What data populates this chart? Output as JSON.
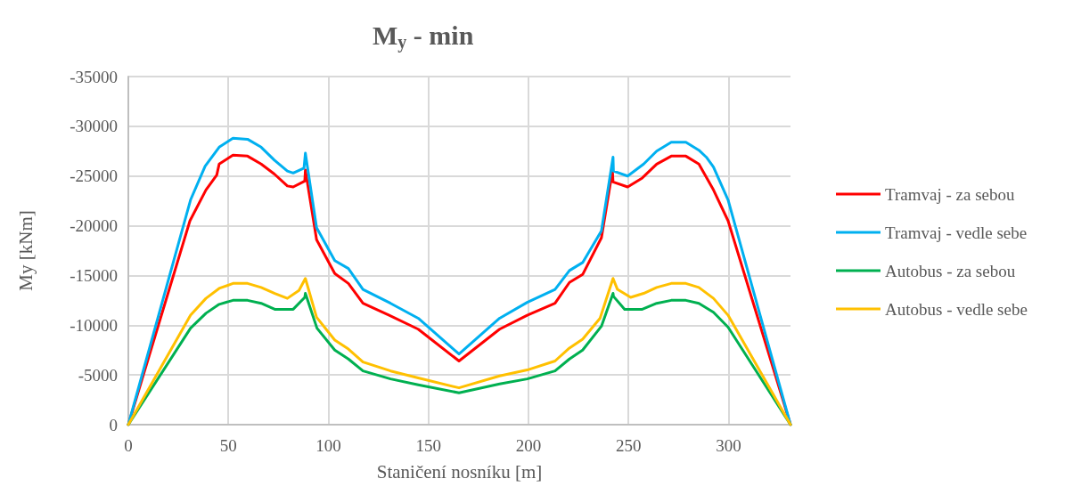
{
  "chart_data": {
    "type": "line",
    "title": "M$_{y}$ - min",
    "xlabel": "Staničení nosníku [m]",
    "ylabel": "My [kNm]",
    "xlim": [
      0,
      331
    ],
    "xticks": [
      0,
      50,
      100,
      150,
      200,
      250,
      300
    ],
    "ylim": [
      0,
      -35000
    ],
    "yticks": [
      0,
      -5000,
      -10000,
      -15000,
      -20000,
      -25000,
      -30000,
      -35000
    ],
    "grid": true,
    "legend": "right",
    "marker": "none",
    "line_style": "solid",
    "series": [
      {
        "name": "Tramvaj - za sebou",
        "color": "#ff0000",
        "x": [
          0,
          30.8,
          38.8,
          44.2,
          45.4,
          52.3,
          59.6,
          66.4,
          73,
          79.5,
          82.4,
          88.2,
          88.5,
          94.1,
          103.2,
          110,
          117.3,
          130.4,
          144.9,
          165.3,
          185.6,
          199.4,
          213.3,
          220.5,
          227.1,
          236.5,
          242,
          242.3,
          249.6,
          256.9,
          264.1,
          271.4,
          278.7,
          285.2,
          292.5,
          299.8,
          331
        ],
        "values": [
          0,
          -20500,
          -23600,
          -25100,
          -26200,
          -27100,
          -27000,
          -26200,
          -25200,
          -24000,
          -23900,
          -24500,
          -25600,
          -18600,
          -15200,
          -14200,
          -12200,
          -11000,
          -9600,
          -6400,
          -9600,
          -11000,
          -12200,
          -14300,
          -15100,
          -18800,
          -25500,
          -24400,
          -23900,
          -24800,
          -26200,
          -27000,
          -27000,
          -26200,
          -23600,
          -20500,
          0
        ]
      },
      {
        "name": "Tramvaj - vedle sebe",
        "color": "#00b0f0",
        "x": [
          0,
          31.1,
          38.4,
          45.4,
          52.3,
          59.6,
          66.4,
          73,
          79.5,
          82.4,
          87.8,
          88.5,
          94.1,
          103.2,
          110,
          117.3,
          131.1,
          144.9,
          165.3,
          185.6,
          199.4,
          213.3,
          220.5,
          227.1,
          236.5,
          242.3,
          242.5,
          249.6,
          257.6,
          264.1,
          271.4,
          278.7,
          285.2,
          288.9,
          292.5,
          299.8,
          331
        ],
        "values": [
          0,
          -22600,
          -26000,
          -27900,
          -28800,
          -28700,
          -27900,
          -26600,
          -25500,
          -25300,
          -25800,
          -27300,
          -19800,
          -16500,
          -15700,
          -13600,
          -12200,
          -10700,
          -7100,
          -10700,
          -12300,
          -13600,
          -15500,
          -16300,
          -19500,
          -26900,
          -25500,
          -25000,
          -26200,
          -27500,
          -28400,
          -28400,
          -27600,
          -26900,
          -25900,
          -22600,
          0
        ]
      },
      {
        "name": "Autobus - za sebou",
        "color": "#00b050",
        "x": [
          0,
          31.1,
          38.8,
          45.4,
          52.3,
          59.6,
          66.4,
          73.2,
          82.4,
          88.2,
          88.5,
          94.3,
          103.2,
          110,
          117.3,
          131.1,
          144.9,
          165.3,
          185.6,
          199.4,
          213.3,
          220.5,
          227.1,
          236.5,
          242.3,
          242.5,
          248.1,
          256.9,
          264.1,
          271.4,
          278.7,
          285.2,
          292.5,
          299.8,
          331
        ],
        "values": [
          0,
          -9700,
          -11200,
          -12100,
          -12500,
          -12500,
          -12200,
          -11600,
          -11600,
          -12800,
          -13200,
          -9700,
          -7500,
          -6600,
          -5400,
          -4600,
          -4000,
          -3200,
          -4100,
          -4600,
          -5400,
          -6600,
          -7500,
          -9900,
          -13200,
          -12900,
          -11600,
          -11600,
          -12200,
          -12500,
          -12500,
          -12200,
          -11300,
          -9800,
          0
        ]
      },
      {
        "name": "Autobus - vedle sebe",
        "color": "#ffc000",
        "x": [
          0,
          31.1,
          38.8,
          45.4,
          52.3,
          59.6,
          66.4,
          73.2,
          79.5,
          85.3,
          88.5,
          94.1,
          103.2,
          110,
          117.3,
          131.1,
          144.9,
          165.3,
          185.6,
          199.4,
          213.3,
          220.5,
          227.1,
          235.8,
          242.3,
          244.5,
          251.1,
          257.6,
          264.1,
          271.4,
          278.7,
          285.2,
          292.5,
          299.8,
          331
        ],
        "values": [
          0,
          -11000,
          -12700,
          -13700,
          -14200,
          -14200,
          -13800,
          -13200,
          -12700,
          -13500,
          -14700,
          -10800,
          -8500,
          -7600,
          -6300,
          -5400,
          -4700,
          -3700,
          -4900,
          -5500,
          -6400,
          -7700,
          -8600,
          -10700,
          -14700,
          -13600,
          -12800,
          -13200,
          -13800,
          -14200,
          -14200,
          -13800,
          -12700,
          -11000,
          0
        ]
      }
    ]
  }
}
